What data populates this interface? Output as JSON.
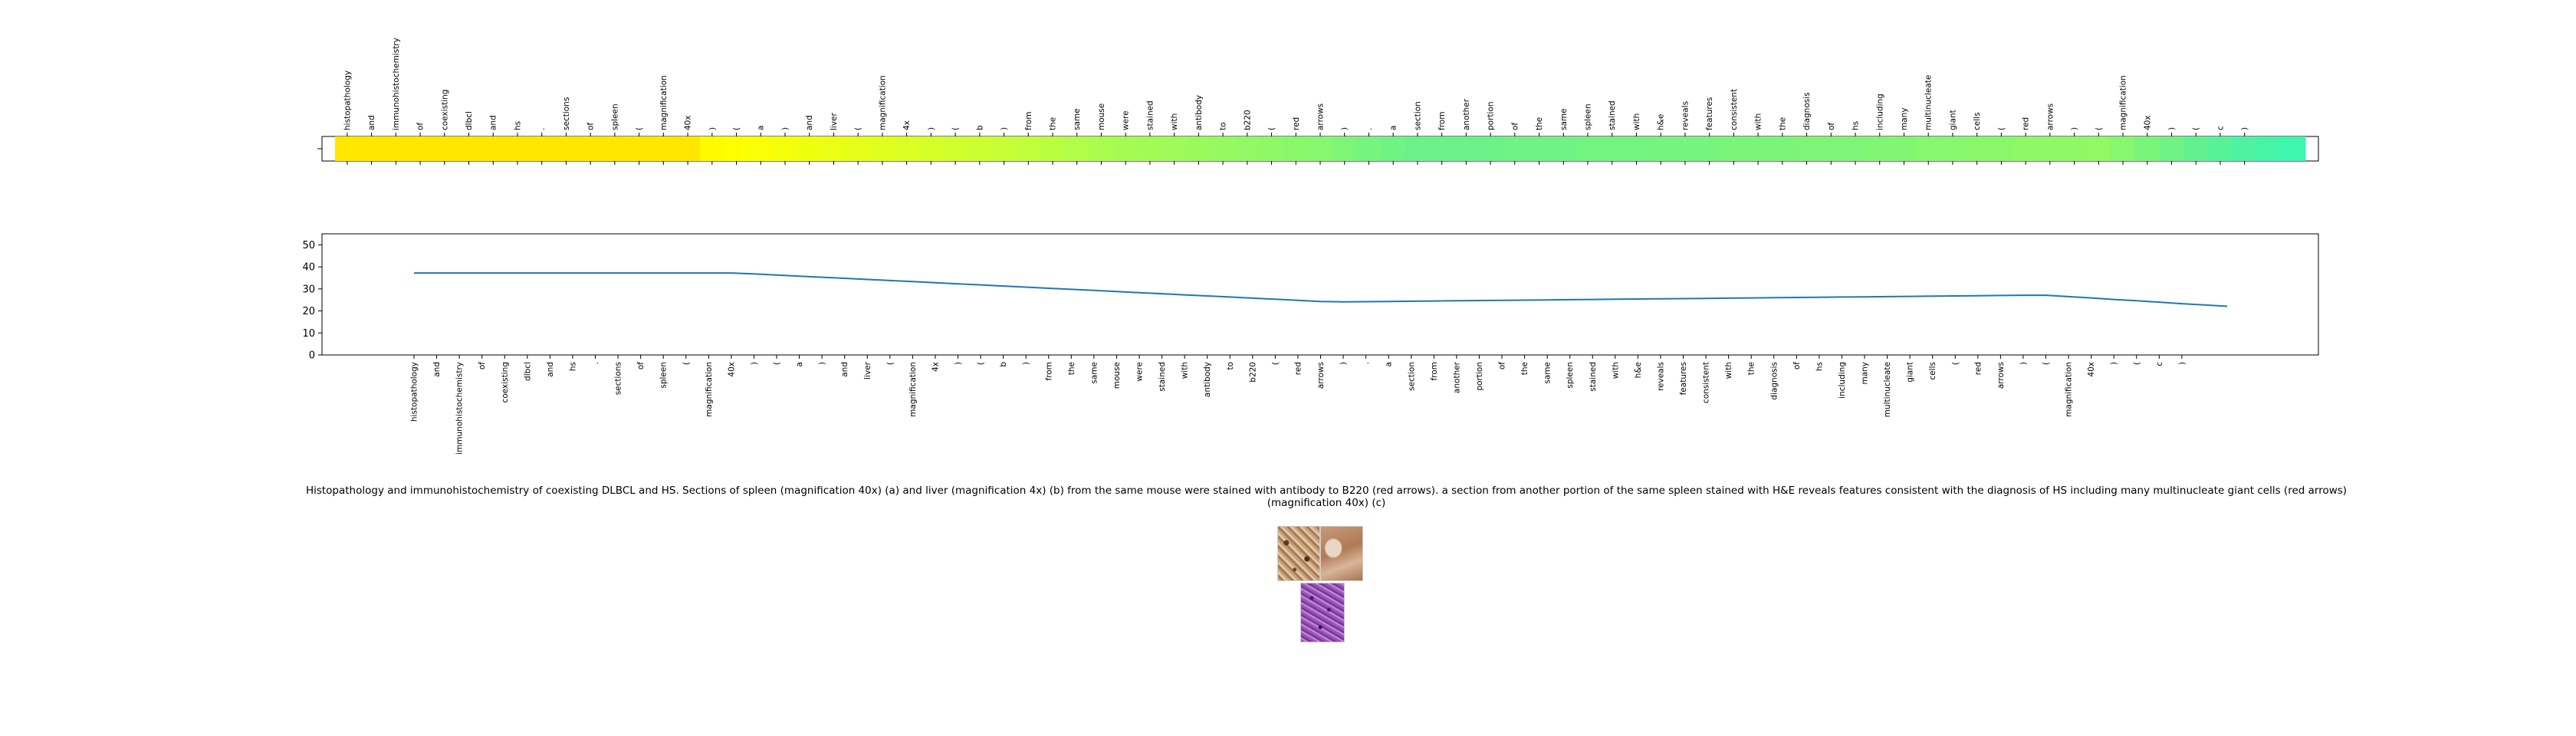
{
  "tokens": [
    "histopathology",
    "and",
    "immunohistochemistry",
    "of",
    "coexisting",
    "dlbcl",
    "and",
    "hs",
    ".",
    "sections",
    "of",
    "spleen",
    "(",
    "magnification",
    "40x",
    ")",
    "(",
    "a",
    ")",
    "and",
    "liver",
    "(",
    "magnification",
    "4x",
    ")",
    "(",
    "b",
    ")",
    "from",
    "the",
    "same",
    "mouse",
    "were",
    "stained",
    "with",
    "antibody",
    "to",
    "b220",
    "(",
    "red",
    "arrows",
    ")",
    ".",
    "a",
    "section",
    "from",
    "another",
    "portion",
    "of",
    "the",
    "same",
    "spleen",
    "stained",
    "with",
    "h&e",
    "reveals",
    "features",
    "consistent",
    "with",
    "the",
    "diagnosis",
    "of",
    "hs",
    "including",
    "many",
    "multinucleate",
    "giant",
    "cells",
    "(",
    "red",
    "arrows",
    ")",
    "(",
    "magnification",
    "40x",
    ")",
    "(",
    "c",
    ")"
  ],
  "caption": "Histopathology and immunohistochemistry of coexisting DLBCL and HS. Sections of spleen (magnification 40x) (a) and liver (magnification 4x) (b) from the same mouse were stained with antibody to B220 (red arrows). a section from another portion of the same spleen stained with H&E reveals features consistent with the diagnosis of HS including many multinucleate giant cells (red arrows) (magnification 40x) (c)",
  "chart_data": [
    {
      "type": "heatmap",
      "colormap": "yellow-green-cyan",
      "labels_position": "top",
      "values": [
        0.1,
        0.1,
        0.1,
        0.1,
        0.1,
        0.1,
        0.1,
        0.1,
        0.1,
        0.1,
        0.1,
        0.1,
        0.1,
        0.1,
        0.1,
        0.22,
        0.25,
        0.27,
        0.29,
        0.31,
        0.33,
        0.35,
        0.37,
        0.39,
        0.41,
        0.43,
        0.45,
        0.47,
        0.49,
        0.51,
        0.53,
        0.55,
        0.56,
        0.57,
        0.58,
        0.59,
        0.6,
        0.61,
        0.62,
        0.63,
        0.64,
        0.66,
        0.68,
        0.7,
        0.71,
        0.71,
        0.71,
        0.71,
        0.7,
        0.7,
        0.7,
        0.69,
        0.69,
        0.69,
        0.68,
        0.68,
        0.68,
        0.67,
        0.67,
        0.67,
        0.66,
        0.66,
        0.66,
        0.65,
        0.65,
        0.64,
        0.64,
        0.63,
        0.63,
        0.62,
        0.62,
        0.62,
        0.61,
        0.64,
        0.67,
        0.7,
        0.73,
        0.76,
        0.79,
        0.82,
        0.85
      ]
    },
    {
      "type": "line",
      "ylim": [
        0,
        55
      ],
      "yticks": [
        0,
        10,
        20,
        30,
        40,
        50
      ],
      "color": "#1f77b4",
      "values": [
        37.2,
        37.2,
        37.2,
        37.2,
        37.2,
        37.2,
        37.2,
        37.2,
        37.2,
        37.2,
        37.2,
        37.2,
        37.2,
        37.2,
        37.2,
        36.8,
        36.3,
        35.8,
        35.3,
        34.8,
        34.3,
        33.8,
        33.3,
        32.8,
        32.3,
        31.8,
        31.3,
        30.8,
        30.3,
        29.8,
        29.3,
        28.8,
        28.3,
        27.8,
        27.3,
        26.8,
        26.3,
        25.8,
        25.3,
        24.8,
        24.3,
        24.1,
        24.2,
        24.3,
        24.4,
        24.5,
        24.6,
        24.7,
        24.8,
        24.9,
        25.0,
        25.1,
        25.2,
        25.3,
        25.4,
        25.5,
        25.6,
        25.7,
        25.8,
        25.9,
        26.0,
        26.1,
        26.2,
        26.3,
        26.4,
        26.5,
        26.6,
        26.7,
        26.8,
        26.9,
        27.0,
        27.1,
        27.1,
        26.5,
        25.9,
        25.2,
        24.6,
        24.0,
        23.3,
        22.7,
        22.1
      ]
    }
  ]
}
